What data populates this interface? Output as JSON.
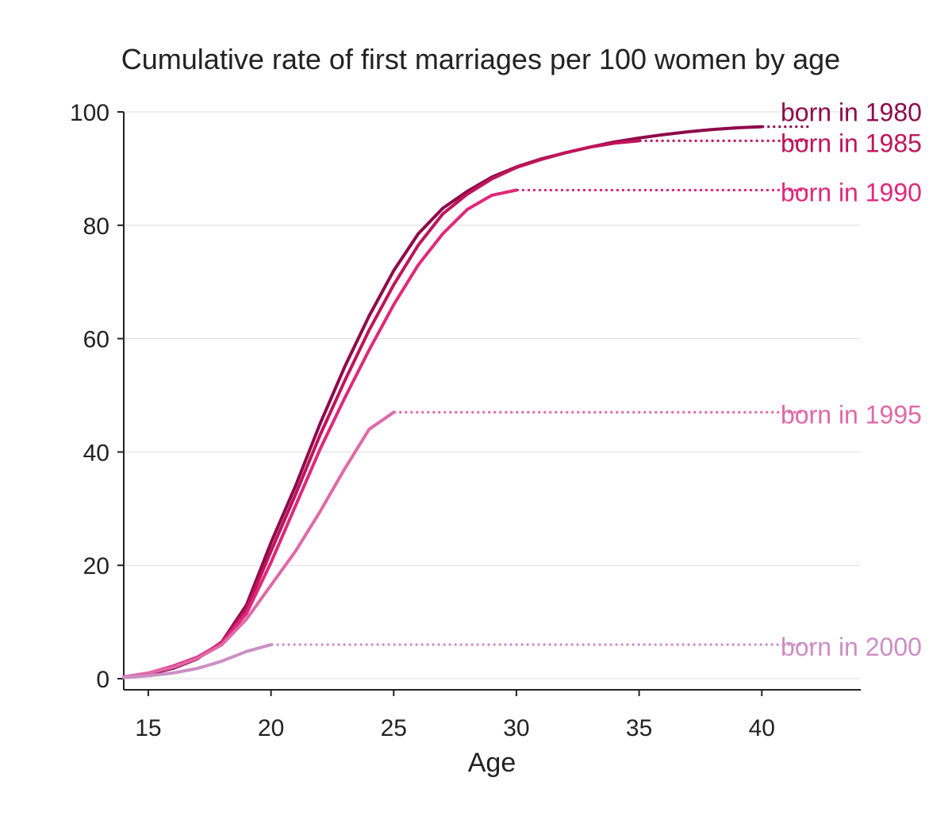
{
  "chart_data": {
    "type": "line",
    "title": "Cumulative rate of first marriages per 100 women by age",
    "xlabel": "Age",
    "ylabel": "",
    "xlim": [
      14,
      44
    ],
    "ylim": [
      0,
      100
    ],
    "xticks": [
      15,
      20,
      25,
      30,
      35,
      40
    ],
    "yticks": [
      0,
      20,
      40,
      60,
      80,
      100
    ],
    "grid": "horizontal",
    "legend": "direct labels at right",
    "projection_end_x": 42,
    "series": [
      {
        "name": "born in 1980",
        "color": "#8e0a4b",
        "x": [
          14,
          15,
          16,
          17,
          18,
          19,
          20,
          21,
          22,
          23,
          24,
          25,
          26,
          27,
          28,
          29,
          30,
          31,
          32,
          33,
          34,
          35,
          36,
          37,
          38,
          39,
          40
        ],
        "y": [
          0.3,
          0.8,
          1.8,
          3.5,
          6.5,
          13,
          24,
          34,
          45,
          55,
          64,
          72,
          78.5,
          83,
          86,
          88.5,
          90.3,
          91.7,
          92.8,
          93.8,
          94.7,
          95.4,
          96,
          96.5,
          96.9,
          97.2,
          97.4
        ]
      },
      {
        "name": "born in 1985",
        "color": "#c0145a",
        "x": [
          14,
          15,
          16,
          17,
          18,
          19,
          20,
          21,
          22,
          23,
          24,
          25,
          26,
          27,
          28,
          29,
          30,
          31,
          32,
          33,
          34,
          35
        ],
        "y": [
          0.3,
          0.9,
          2,
          3.6,
          6.4,
          12.3,
          22.5,
          32.5,
          43,
          52.5,
          61.5,
          69.5,
          76.5,
          82,
          85.5,
          88.2,
          90.2,
          91.6,
          92.8,
          93.8,
          94.5,
          94.9
        ]
      },
      {
        "name": "born in 1990",
        "color": "#e0287a",
        "x": [
          14,
          15,
          16,
          17,
          18,
          19,
          20,
          21,
          22,
          23,
          24,
          25,
          26,
          27,
          28,
          29,
          30
        ],
        "y": [
          0.3,
          1,
          2.2,
          3.8,
          6.3,
          11.5,
          20.5,
          30.5,
          40.5,
          49.5,
          58,
          66,
          73,
          78.5,
          82.8,
          85.3,
          86.2
        ]
      },
      {
        "name": "born in 1995",
        "color": "#e069a8",
        "x": [
          14,
          15,
          16,
          17,
          18,
          19,
          20,
          21,
          22,
          23,
          24,
          25
        ],
        "y": [
          0.3,
          1,
          2,
          3.6,
          6,
          10.5,
          16.5,
          22.5,
          29.5,
          37,
          44,
          47
        ]
      },
      {
        "name": "born in 2000",
        "color": "#cc8ec4",
        "x": [
          14,
          15,
          16,
          17,
          18,
          19,
          20
        ],
        "y": [
          0.2,
          0.5,
          1,
          1.8,
          3.1,
          4.8,
          6
        ]
      }
    ]
  }
}
